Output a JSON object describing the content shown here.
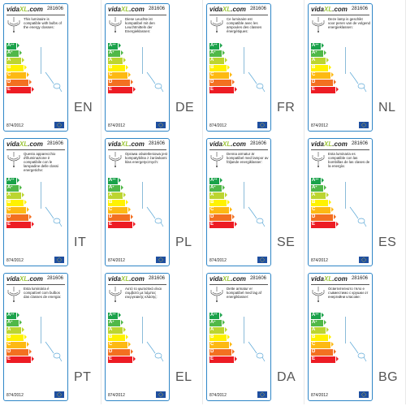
{
  "brand": {
    "name": "vida",
    "suffix": "XL",
    "tld": ".com"
  },
  "model": "281606",
  "regulation": "874/2012",
  "classes": [
    {
      "letter": "A",
      "plus": "++",
      "color": "#1aa24a",
      "width": 12
    },
    {
      "letter": "A",
      "plus": "+",
      "color": "#50b848",
      "width": 15
    },
    {
      "letter": "A",
      "plus": "",
      "color": "#bcd530",
      "width": 18
    },
    {
      "letter": "B",
      "plus": "",
      "color": "#fff200",
      "width": 21
    },
    {
      "letter": "C",
      "plus": "",
      "color": "#fdb913",
      "width": 24
    },
    {
      "letter": "D",
      "plus": "",
      "color": "#f37021",
      "width": 27
    },
    {
      "letter": "E",
      "plus": "",
      "color": "#ed1c24",
      "width": 30
    }
  ],
  "labels": [
    {
      "lang": "EN",
      "text": "This luminaire is compatible with bulbs of the energy classes:"
    },
    {
      "lang": "DE",
      "text": "Diese Leuchte ist kompatibel mit den Leuchtmitteln der Energieklassen:"
    },
    {
      "lang": "FR",
      "text": "Ce luminaire est compatible avec les ampoules des classes énergétiques:"
    },
    {
      "lang": "NL",
      "text": "Deze lamp is geschikt voor peren van de volgend energieklassen:"
    },
    {
      "lang": "IT",
      "text": "Questo apparecchio d'illuminazione è compatibile con le lampadine delle classi energetiche:"
    },
    {
      "lang": "PL",
      "text": "Oprawa oświetleniowa jest kompatybilna z żarówkami klas energetycznych:"
    },
    {
      "lang": "SE",
      "text": "Denna armatur är kompatibel med lampor av följande energiklasser:"
    },
    {
      "lang": "ES",
      "text": "Esta luminaria es compatible con las bombillas de las clases de la energía:"
    },
    {
      "lang": "PT",
      "text": "Esta luminária é compatível com bulbos das classes de energia:"
    },
    {
      "lang": "EL",
      "text": "Αυτό το φωτιστικό είναι συμβατό με λάμπες ενεργειακής κλάσης:"
    },
    {
      "lang": "DA",
      "text": "Dette armatur er kompatibel med lag af energiklasser:"
    },
    {
      "lang": "BG",
      "text": "Осветителното тяло е съвместимо с крушки от енергийни класове:"
    }
  ]
}
